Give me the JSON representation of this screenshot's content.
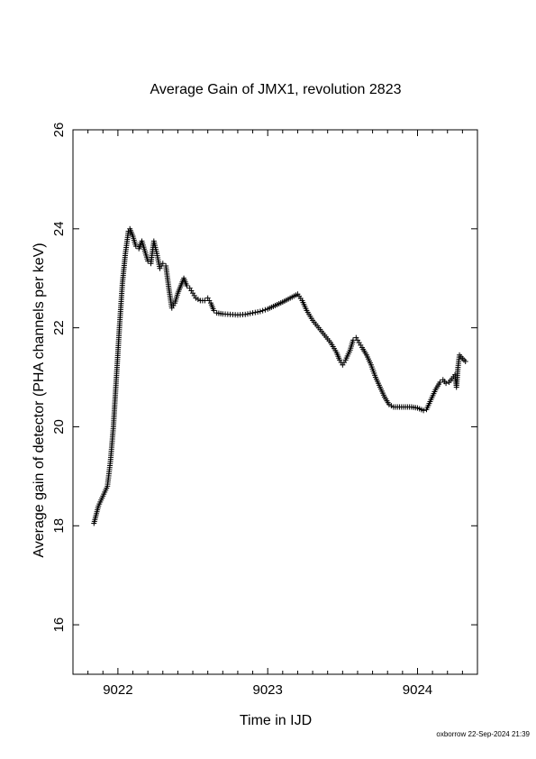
{
  "chart_data": {
    "type": "scatter",
    "title": "Average Gain of JMX1, revolution 2823",
    "xlabel": "Time in IJD",
    "ylabel": "Average gain of detector (PHA channels per keV)",
    "xlim": [
      9021.7,
      9024.4
    ],
    "ylim": [
      15,
      26
    ],
    "xticks": [
      9022,
      9023,
      9024
    ],
    "xtick_labels": [
      "9022",
      "9023",
      "9024"
    ],
    "yticks": [
      16,
      18,
      20,
      22,
      24,
      26
    ],
    "ytick_labels": [
      "16",
      "18",
      "20",
      "22",
      "24",
      "26"
    ],
    "grid": false,
    "legend": "none",
    "marker": "plus",
    "color": "#000000",
    "footer": "oxborrow 22-Sep-2024 21:39",
    "points": [
      [
        9021.84,
        18.05
      ],
      [
        9021.87,
        18.4
      ],
      [
        9021.9,
        18.6
      ],
      [
        9021.93,
        18.8
      ],
      [
        9021.95,
        19.3
      ],
      [
        9021.97,
        20.0
      ],
      [
        9021.99,
        21.0
      ],
      [
        9022.01,
        22.0
      ],
      [
        9022.03,
        22.9
      ],
      [
        9022.05,
        23.5
      ],
      [
        9022.07,
        23.95
      ],
      [
        9022.08,
        24.0
      ],
      [
        9022.1,
        23.85
      ],
      [
        9022.12,
        23.65
      ],
      [
        9022.14,
        23.6
      ],
      [
        9022.16,
        23.75
      ],
      [
        9022.18,
        23.55
      ],
      [
        9022.2,
        23.35
      ],
      [
        9022.22,
        23.3
      ],
      [
        9022.24,
        23.75
      ],
      [
        9022.26,
        23.5
      ],
      [
        9022.28,
        23.2
      ],
      [
        9022.3,
        23.3
      ],
      [
        9022.32,
        23.25
      ],
      [
        9022.34,
        22.8
      ],
      [
        9022.36,
        22.4
      ],
      [
        9022.38,
        22.5
      ],
      [
        9022.4,
        22.7
      ],
      [
        9022.42,
        22.85
      ],
      [
        9022.44,
        23.0
      ],
      [
        9022.46,
        22.85
      ],
      [
        9022.48,
        22.8
      ],
      [
        9022.5,
        22.7
      ],
      [
        9022.52,
        22.6
      ],
      [
        9022.55,
        22.55
      ],
      [
        9022.58,
        22.55
      ],
      [
        9022.6,
        22.6
      ],
      [
        9022.62,
        22.5
      ],
      [
        9022.64,
        22.35
      ],
      [
        9022.66,
        22.3
      ],
      [
        9022.7,
        22.28
      ],
      [
        9022.75,
        22.27
      ],
      [
        9022.8,
        22.26
      ],
      [
        9022.85,
        22.27
      ],
      [
        9022.9,
        22.3
      ],
      [
        9022.95,
        22.33
      ],
      [
        9023.0,
        22.38
      ],
      [
        9023.05,
        22.45
      ],
      [
        9023.1,
        22.52
      ],
      [
        9023.15,
        22.6
      ],
      [
        9023.2,
        22.68
      ],
      [
        9023.23,
        22.55
      ],
      [
        9023.26,
        22.35
      ],
      [
        9023.3,
        22.15
      ],
      [
        9023.34,
        22.0
      ],
      [
        9023.38,
        21.85
      ],
      [
        9023.42,
        21.7
      ],
      [
        9023.46,
        21.5
      ],
      [
        9023.48,
        21.35
      ],
      [
        9023.5,
        21.25
      ],
      [
        9023.52,
        21.35
      ],
      [
        9023.55,
        21.55
      ],
      [
        9023.57,
        21.75
      ],
      [
        9023.59,
        21.8
      ],
      [
        9023.61,
        21.7
      ],
      [
        9023.63,
        21.6
      ],
      [
        9023.66,
        21.45
      ],
      [
        9023.69,
        21.25
      ],
      [
        9023.72,
        21.0
      ],
      [
        9023.75,
        20.8
      ],
      [
        9023.78,
        20.6
      ],
      [
        9023.81,
        20.45
      ],
      [
        9023.84,
        20.4
      ],
      [
        9023.88,
        20.4
      ],
      [
        9023.92,
        20.4
      ],
      [
        9023.96,
        20.4
      ],
      [
        9024.0,
        20.38
      ],
      [
        9024.04,
        20.33
      ],
      [
        9024.06,
        20.35
      ],
      [
        9024.09,
        20.55
      ],
      [
        9024.12,
        20.75
      ],
      [
        9024.15,
        20.9
      ],
      [
        9024.17,
        20.95
      ],
      [
        9024.19,
        20.88
      ],
      [
        9024.21,
        20.9
      ],
      [
        9024.23,
        20.97
      ],
      [
        9024.25,
        21.05
      ],
      [
        9024.26,
        20.8
      ],
      [
        9024.27,
        21.2
      ],
      [
        9024.28,
        21.45
      ],
      [
        9024.3,
        21.38
      ],
      [
        9024.32,
        21.32
      ]
    ]
  }
}
